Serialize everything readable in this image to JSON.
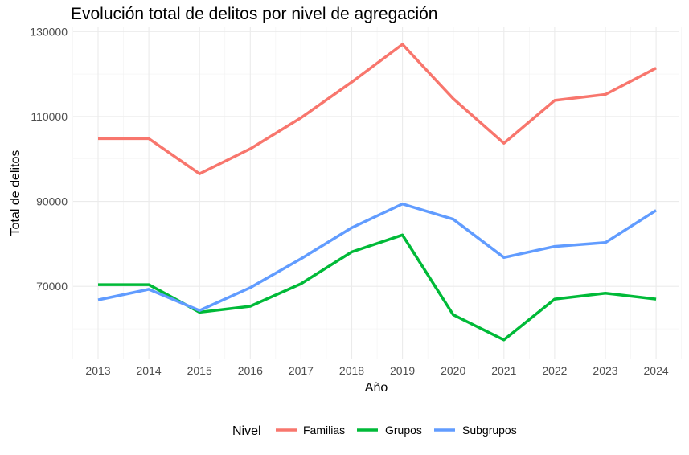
{
  "chart_data": {
    "type": "line",
    "title": "Evolución total de delitos por nivel de agregación",
    "xlabel": "Año",
    "ylabel": "Total de delitos",
    "x": [
      "2013",
      "2014",
      "2015",
      "2016",
      "2017",
      "2018",
      "2019",
      "2020",
      "2021",
      "2022",
      "2023",
      "2024"
    ],
    "yticks": [
      "70000",
      "90000",
      "110000",
      "130000"
    ],
    "ylim": [
      53000,
      131000
    ],
    "grid": true,
    "legend": {
      "title": "Nivel",
      "position": "bottom",
      "entries": [
        "Familias",
        "Grupos",
        "Subgrupos"
      ]
    },
    "series": [
      {
        "name": "Familias",
        "color": "#F8766D",
        "values": [
          104800,
          104800,
          96500,
          102400,
          109700,
          118100,
          127000,
          114200,
          103700,
          113800,
          115200,
          121400
        ]
      },
      {
        "name": "Grupos",
        "color": "#00BA38",
        "values": [
          70400,
          70400,
          63900,
          65300,
          70600,
          78100,
          82100,
          63300,
          57400,
          67000,
          68400,
          67000
        ]
      },
      {
        "name": "Subgrupos",
        "color": "#619CFF",
        "values": [
          66800,
          69300,
          64300,
          69700,
          76500,
          83800,
          89400,
          85800,
          76800,
          79400,
          80300,
          87900
        ]
      }
    ]
  }
}
